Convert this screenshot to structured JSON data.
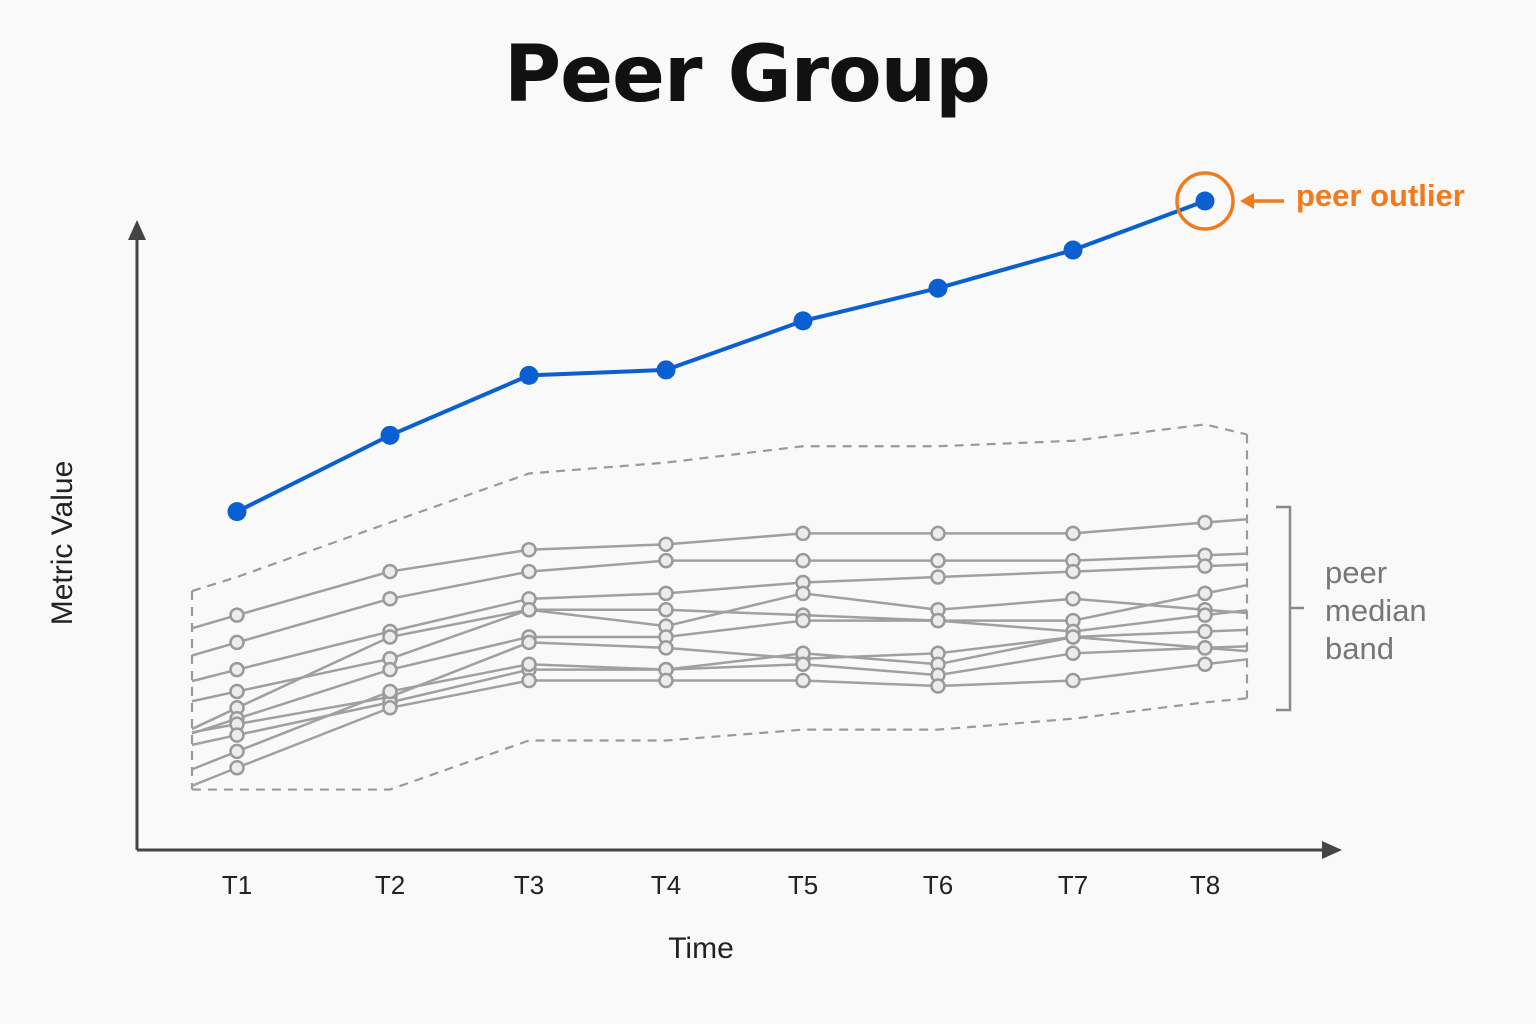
{
  "chart_data": {
    "type": "line",
    "title": "Peer Group",
    "xlabel": "Time",
    "ylabel": "Metric Value",
    "categories": [
      "T1",
      "T2",
      "T3",
      "T4",
      "T5",
      "T6",
      "T7",
      "T8"
    ],
    "ylim": [
      0,
      100
    ],
    "grid": false,
    "series": [
      {
        "role": "highlighted",
        "values": [
          52,
          66,
          77,
          78,
          87,
          93,
          100,
          109
        ],
        "color": "#0a5fd1"
      },
      {
        "role": "peer",
        "values": [
          33,
          41,
          45,
          46,
          48,
          48,
          48,
          50
        ],
        "color": "#a0a0a0"
      },
      {
        "role": "peer",
        "values": [
          28,
          36,
          41,
          43,
          43,
          43,
          43,
          44
        ],
        "color": "#a0a0a0"
      },
      {
        "role": "peer",
        "values": [
          23,
          30,
          36,
          37,
          39,
          40,
          41,
          42
        ],
        "color": "#a0a0a0"
      },
      {
        "role": "peer",
        "values": [
          19,
          25,
          34,
          31,
          37,
          34,
          36,
          34
        ],
        "color": "#a0a0a0"
      },
      {
        "role": "peer",
        "values": [
          16,
          29,
          34,
          34,
          33,
          32,
          32,
          37
        ],
        "color": "#a0a0a0"
      },
      {
        "role": "peer",
        "values": [
          14,
          23,
          29,
          29,
          32,
          32,
          30,
          33
        ],
        "color": "#a0a0a0"
      },
      {
        "role": "peer",
        "values": [
          13,
          18,
          28,
          27,
          25,
          26,
          29,
          30
        ],
        "color": "#a0a0a0"
      },
      {
        "role": "peer",
        "values": [
          11,
          17,
          23,
          23,
          26,
          24,
          29,
          27
        ],
        "color": "#a0a0a0"
      },
      {
        "role": "peer",
        "values": [
          8,
          19,
          24,
          23,
          24,
          22,
          26,
          27
        ],
        "color": "#a0a0a0"
      },
      {
        "role": "peer",
        "values": [
          5,
          16,
          21,
          21,
          21,
          20,
          21,
          24
        ],
        "color": "#a0a0a0"
      }
    ],
    "band": {
      "upper": [
        40,
        50,
        59,
        61,
        64,
        64,
        65,
        68
      ],
      "lower": [
        1,
        1,
        10,
        10,
        12,
        12,
        14,
        17
      ]
    },
    "annotations": {
      "outlier_label": "peer outlier",
      "band_label": [
        "peer",
        "median",
        "band"
      ]
    },
    "colors": {
      "highlight": "#0a5fd1",
      "peer": "#a0a0a0",
      "band": "#9a9a9a",
      "annotation": "#f07b1e",
      "axis": "#444444"
    }
  }
}
